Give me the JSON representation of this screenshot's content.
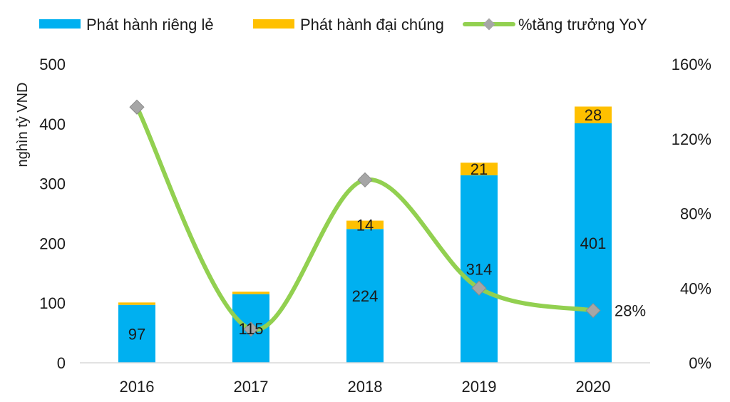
{
  "chart_data": {
    "type": "bar",
    "categories": [
      "2016",
      "2017",
      "2018",
      "2019",
      "2020"
    ],
    "series": [
      {
        "name": "Phát hành riêng lẻ",
        "kind": "bar",
        "axis": "left",
        "color": "#00B0F0",
        "values": [
          97,
          115,
          224,
          314,
          401
        ],
        "labels": [
          "97",
          "115",
          "224",
          "314",
          "401"
        ]
      },
      {
        "name": "Phát hành đại chúng",
        "kind": "bar",
        "axis": "left",
        "color": "#FFC000",
        "values": [
          4,
          4,
          14,
          21,
          28
        ],
        "labels": [
          "",
          "",
          "14",
          "21",
          "28"
        ]
      },
      {
        "name": "%tăng trưởng YoY",
        "kind": "line",
        "axis": "right",
        "color": "#92D050",
        "marker_color": "#A6A6A6",
        "values": [
          137,
          18,
          98,
          40,
          28
        ],
        "labels": [
          "",
          "",
          "",
          "",
          "28%"
        ]
      }
    ],
    "ylabel": "nghìn tỷ VND",
    "ylim": [
      0,
      500
    ],
    "y_ticks": [
      "0",
      "100",
      "200",
      "300",
      "400",
      "500"
    ],
    "y2lim": [
      0,
      160
    ],
    "y2_ticks": [
      "0%",
      "40%",
      "80%",
      "120%",
      "160%"
    ],
    "grid": false,
    "legend_position": "top"
  }
}
